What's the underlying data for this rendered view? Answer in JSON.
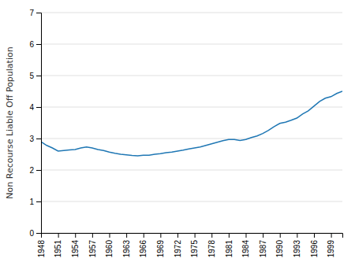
{
  "chart_data": {
    "type": "line",
    "x": [
      1948,
      1949,
      1950,
      1951,
      1952,
      1953,
      1954,
      1955,
      1956,
      1957,
      1958,
      1959,
      1960,
      1961,
      1962,
      1963,
      1964,
      1965,
      1966,
      1967,
      1968,
      1969,
      1970,
      1971,
      1972,
      1973,
      1974,
      1975,
      1976,
      1977,
      1978,
      1979,
      1980,
      1981,
      1982,
      1983,
      1984,
      1985,
      1986,
      1987,
      1988,
      1989,
      1990,
      1991,
      1992,
      1993,
      1994,
      1995,
      1996,
      1997,
      1998,
      1999,
      2000,
      2001
    ],
    "values": [
      2.9,
      2.78,
      2.7,
      2.6,
      2.62,
      2.64,
      2.65,
      2.7,
      2.73,
      2.7,
      2.65,
      2.62,
      2.57,
      2.53,
      2.5,
      2.48,
      2.46,
      2.45,
      2.47,
      2.47,
      2.5,
      2.52,
      2.55,
      2.57,
      2.6,
      2.63,
      2.67,
      2.7,
      2.73,
      2.78,
      2.83,
      2.88,
      2.93,
      2.97,
      2.97,
      2.94,
      2.97,
      3.03,
      3.08,
      3.16,
      3.26,
      3.38,
      3.48,
      3.52,
      3.58,
      3.65,
      3.78,
      3.88,
      4.03,
      4.18,
      4.28,
      4.33,
      4.43,
      4.5
    ],
    "ylabel": "Non Recourse Liable Off Population",
    "xlim": [
      1948,
      2001
    ],
    "xticks": [
      1948,
      1951,
      1954,
      1957,
      1960,
      1963,
      1966,
      1969,
      1972,
      1975,
      1978,
      1981,
      1984,
      1987,
      1990,
      1993,
      1996,
      1999
    ],
    "ylim": [
      0,
      7
    ],
    "yticks": [
      0,
      1,
      2,
      3,
      4,
      5,
      6,
      7
    ],
    "grid": true
  }
}
